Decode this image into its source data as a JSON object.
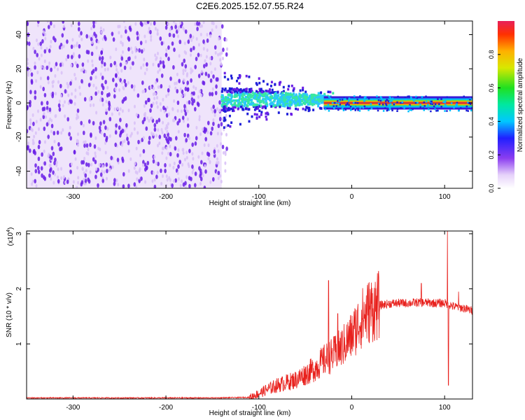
{
  "title": "C2E6.2025.152.07.55.R24",
  "colors": {
    "snr_line": "#e8201c",
    "scatter_main": "#6a1fe6",
    "scatter_light": "#d9c2f7",
    "band_core": "#d93838",
    "band_green": "#39e8a0",
    "band_cyan": "#2ac6ff"
  },
  "chart_data": [
    {
      "type": "heatmap",
      "title": "",
      "xlabel": "Height of straight line (km)",
      "ylabel": "Frequency (Hz)",
      "xlim": [
        -350,
        130
      ],
      "ylim": [
        -50,
        48
      ],
      "x_ticks": [
        -300,
        -200,
        -100,
        0,
        100
      ],
      "x_tick_labels": [
        "-300",
        "-200",
        "-100",
        "0",
        "100"
      ],
      "y_ticks": [
        -40,
        -20,
        0,
        20,
        40
      ],
      "y_tick_labels": [
        "-40",
        "-20",
        "0",
        "20",
        "40"
      ],
      "colorbar": {
        "label": "Normalized spectral amplitude",
        "range": [
          0,
          1
        ],
        "ticks": [
          0.0,
          0.2,
          0.4,
          0.6,
          0.8
        ],
        "tick_labels": [
          "0.0",
          "0.2",
          "0.4",
          "0.6",
          "0.8"
        ]
      },
      "regions": [
        {
          "name": "broadband noise",
          "x_range": [
            -350,
            -140
          ],
          "freq_range": [
            -50,
            48
          ],
          "amplitude": 0.1
        },
        {
          "name": "spectral line onset",
          "x_range": [
            -140,
            -30
          ],
          "freq_center": 2,
          "freq_halfwidth": 12,
          "amplitude": 0.35
        },
        {
          "name": "stable spectral line",
          "x_range": [
            -30,
            130
          ],
          "freq_center": 0,
          "freq_halfwidth": 3,
          "amplitude": 0.95
        }
      ]
    },
    {
      "type": "line",
      "title": "",
      "xlabel": "Height of straight line (km)",
      "ylabel": "SNR (10 * v/v)",
      "y_multiplier": "(x10",
      "y_multiplier_exp": "4",
      "y_multiplier_close": ")",
      "xlim": [
        -350,
        130
      ],
      "ylim": [
        0,
        3.05
      ],
      "x_ticks": [
        -300,
        -200,
        -100,
        0,
        100
      ],
      "x_tick_labels": [
        "-300",
        "-200",
        "-100",
        "0",
        "100"
      ],
      "y_ticks": [
        1,
        2,
        3
      ],
      "y_tick_labels": [
        "1",
        "2",
        "3"
      ],
      "series": [
        {
          "x": [
            -350,
            -300,
            -250,
            -200,
            -150,
            -110,
            -100,
            -90,
            -80,
            -70,
            -60,
            -50,
            -40,
            -30,
            -20,
            -10,
            0,
            10,
            20,
            30,
            40,
            50,
            60,
            70,
            80,
            90,
            100,
            110,
            120,
            130
          ],
          "y": [
            0.02,
            0.02,
            0.02,
            0.02,
            0.02,
            0.03,
            0.1,
            0.18,
            0.25,
            0.3,
            0.35,
            0.45,
            0.55,
            0.7,
            0.8,
            0.95,
            1.15,
            1.45,
            1.62,
            1.7,
            1.73,
            1.74,
            1.74,
            1.75,
            1.75,
            1.74,
            1.74,
            1.68,
            1.65,
            1.6
          ],
          "spikes": [
            {
              "x": -25,
              "y": 2.15
            },
            {
              "x": -15,
              "y": 1.55
            },
            {
              "x": 75,
              "y": 2.1
            },
            {
              "x": 103,
              "y": 3.05
            },
            {
              "x": 104,
              "y": 0.25
            },
            {
              "x": 115,
              "y": 1.95
            }
          ]
        }
      ]
    }
  ]
}
